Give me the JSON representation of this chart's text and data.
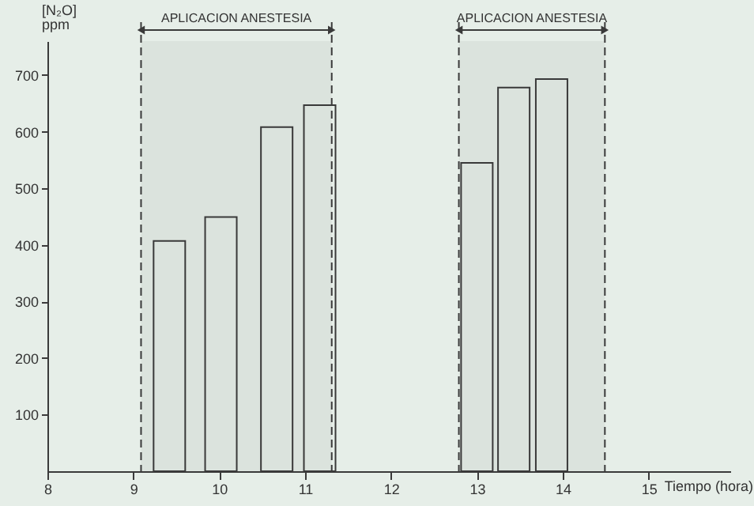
{
  "chart_data": {
    "type": "bar",
    "xlabel": "Tiempo (hora)",
    "ylabel": "[N₂O] ppm",
    "x": [
      9.42,
      10.02,
      10.67,
      11.17,
      13.0,
      13.43,
      13.87
    ],
    "values": [
      407,
      449,
      608,
      647,
      545,
      678,
      693
    ],
    "color": "#3a3a3a",
    "xlim": [
      8,
      15.95
    ],
    "xticks": [
      8,
      9,
      10,
      11,
      12,
      13,
      14,
      15
    ],
    "ylim": [
      0,
      760
    ],
    "yticks": [
      100,
      200,
      300,
      400,
      500,
      600,
      700
    ],
    "bands": [
      {
        "axis": "x",
        "from": 9.09,
        "to": 11.31,
        "label": "APLICACION ANESTESIA",
        "color": "#3a3a3a"
      },
      {
        "axis": "x",
        "from": 12.79,
        "to": 14.49,
        "label": "APLICACION ANESTESIA",
        "color": "#3a3a3a"
      }
    ],
    "grid": false
  }
}
